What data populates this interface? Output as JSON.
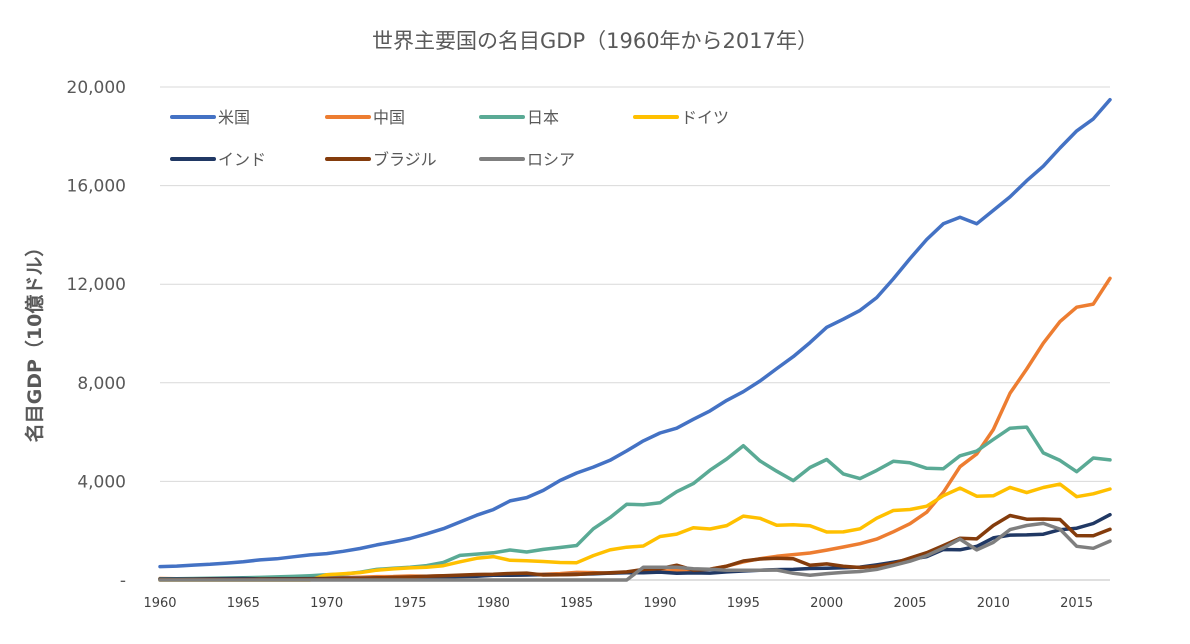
{
  "chart_data": {
    "type": "line",
    "title": "世界主要国の名目GDP（1960年から2017年）",
    "xlabel": "",
    "ylabel": "名目GDP（10億ドル）",
    "xlim": [
      1960,
      2017
    ],
    "ylim": [
      0,
      20000
    ],
    "grid": true,
    "legend_position": "top-left",
    "x_ticks": [
      1960,
      1965,
      1970,
      1975,
      1980,
      1985,
      1990,
      1995,
      2000,
      2005,
      2010,
      2015
    ],
    "x_tick_labels": [
      "1960",
      "1965",
      "1970",
      "1975",
      "1980",
      "1985",
      "1990",
      "1995",
      "2000",
      "2005",
      "2010",
      "2015"
    ],
    "y_ticks": [
      0,
      4000,
      8000,
      12000,
      16000,
      20000
    ],
    "y_tick_labels": [
      "-",
      "4,000",
      "8,000",
      "12,000",
      "16,000",
      "20,000"
    ],
    "x": [
      1960,
      1961,
      1962,
      1963,
      1964,
      1965,
      1966,
      1967,
      1968,
      1969,
      1970,
      1971,
      1972,
      1973,
      1974,
      1975,
      1976,
      1977,
      1978,
      1979,
      1980,
      1981,
      1982,
      1983,
      1984,
      1985,
      1986,
      1987,
      1988,
      1989,
      1990,
      1991,
      1992,
      1993,
      1994,
      1995,
      1996,
      1997,
      1998,
      1999,
      2000,
      2001,
      2002,
      2003,
      2004,
      2005,
      2006,
      2007,
      2008,
      2009,
      2010,
      2011,
      2012,
      2013,
      2014,
      2015,
      2016,
      2017
    ],
    "series": [
      {
        "name": "米国",
        "color": "#4472c4",
        "values": [
          543,
          563,
          605,
          638,
          685,
          743,
          815,
          861,
          942,
          1019,
          1073,
          1165,
          1279,
          1425,
          1545,
          1684,
          1873,
          2082,
          2352,
          2627,
          2857,
          3207,
          3343,
          3634,
          4037,
          4339,
          4580,
          4855,
          5236,
          5642,
          5963,
          6158,
          6520,
          6859,
          7287,
          7640,
          8073,
          8577,
          9063,
          9631,
          10252,
          10582,
          10936,
          11458,
          12214,
          13037,
          13815,
          14452,
          14713,
          14449,
          14992,
          15543,
          16197,
          16785,
          17527,
          18219,
          18707,
          19485
        ]
      },
      {
        "name": "中国",
        "color": "#ed7d31",
        "values": [
          60,
          50,
          47,
          51,
          60,
          71,
          77,
          73,
          71,
          79,
          93,
          100,
          114,
          139,
          144,
          163,
          154,
          175,
          150,
          178,
          191,
          196,
          205,
          231,
          260,
          310,
          301,
          273,
          313,
          348,
          361,
          383,
          427,
          444,
          564,
          735,
          864,
          962,
          1029,
          1094,
          1211,
          1339,
          1471,
          1660,
          1955,
          2286,
          2752,
          3552,
          4598,
          5110,
          6101,
          7573,
          8561,
          9607,
          10482,
          11065,
          11191,
          12238
        ]
      },
      {
        "name": "日本",
        "color": "#5aaa95",
        "values": [
          44,
          54,
          61,
          69,
          82,
          91,
          106,
          124,
          147,
          173,
          213,
          240,
          318,
          432,
          479,
          521,
          584,
          710,
          999,
          1049,
          1105,
          1218,
          1135,
          1243,
          1318,
          1399,
          2079,
          2531,
          3071,
          3054,
          3133,
          3584,
          3909,
          4454,
          4907,
          5449,
          4833,
          4414,
          4033,
          4563,
          4888,
          4304,
          4115,
          4445,
          4815,
          4755,
          4530,
          4515,
          5038,
          5231,
          5700,
          6157,
          6203,
          5156,
          4850,
          4395,
          4949,
          4872
        ]
      },
      {
        "name": "ドイツ",
        "color": "#ffc000",
        "values": [
          0,
          0,
          0,
          0,
          0,
          0,
          0,
          0,
          0,
          0,
          216,
          250,
          300,
          399,
          450,
          490,
          520,
          580,
          740,
          880,
          950,
          800,
          780,
          750,
          710,
          700,
          990,
          1220,
          1330,
          1380,
          1765,
          1862,
          2123,
          2068,
          2206,
          2592,
          2504,
          2219,
          2244,
          2203,
          1948,
          1950,
          2079,
          2506,
          2819,
          2861,
          2992,
          3421,
          3730,
          3398,
          3417,
          3758,
          3544,
          3753,
          3890,
          3381,
          3495,
          3693
        ]
      },
      {
        "name": "インド",
        "color": "#203864",
        "values": [
          37,
          39,
          42,
          48,
          56,
          59,
          46,
          50,
          53,
          58,
          62,
          67,
          71,
          85,
          99,
          98,
          102,
          121,
          137,
          153,
          189,
          196,
          203,
          218,
          212,
          232,
          248,
          279,
          296,
          296,
          320,
          270,
          288,
          279,
          327,
          366,
          399,
          423,
          429,
          467,
          476,
          494,
          523,
          618,
          721,
          834,
          949,
          1239,
          1224,
          1365,
          1708,
          1823,
          1828,
          1857,
          2039,
          2103,
          2294,
          2651
        ]
      },
      {
        "name": "ブラジル",
        "color": "#843c0c",
        "values": [
          15,
          15,
          19,
          23,
          21,
          21,
          27,
          30,
          33,
          37,
          42,
          49,
          58,
          83,
          105,
          123,
          152,
          176,
          200,
          224,
          235,
          263,
          281,
          203,
          209,
          223,
          268,
          294,
          330,
          425,
          462,
          602,
          400,
          437,
          558,
          769,
          850,
          883,
          864,
          599,
          655,
          559,
          508,
          558,
          669,
          891,
          1107,
          1397,
          1696,
          1667,
          2209,
          2616,
          2465,
          2473,
          2456,
          1802,
          1796,
          2055
        ]
      },
      {
        "name": "ロシア",
        "color": "#7f7f7f",
        "values": [
          0,
          0,
          0,
          0,
          0,
          0,
          0,
          0,
          0,
          0,
          0,
          0,
          0,
          0,
          0,
          0,
          0,
          0,
          0,
          0,
          0,
          0,
          0,
          0,
          0,
          0,
          0,
          0,
          0,
          517,
          517,
          518,
          460,
          435,
          395,
          396,
          392,
          405,
          271,
          196,
          260,
          307,
          345,
          430,
          591,
          764,
          990,
          1300,
          1661,
          1223,
          1525,
          2046,
          2210,
          2297,
          2064,
          1366,
          1285,
          1578
        ]
      }
    ]
  }
}
